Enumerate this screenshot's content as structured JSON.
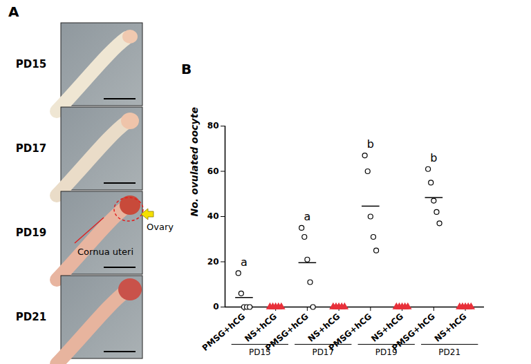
{
  "panel_a": {
    "label": "A",
    "rows": [
      "PD15",
      "PD17",
      "PD19",
      "PD21"
    ],
    "annotations": [
      "Ovary",
      "Cornua uteri"
    ]
  },
  "chart_data": {
    "type": "scatter",
    "panel": "B",
    "ylabel": "No. ovulated oocyte",
    "groups": [
      "PD15",
      "PD17",
      "PD19",
      "PD21"
    ],
    "series": [
      {
        "name": "PMSG+hCG",
        "color": "#000000",
        "marker": "circle",
        "values": [
          [
            15,
            6,
            0,
            0,
            0
          ],
          [
            35,
            31,
            21,
            11,
            0
          ],
          [
            67,
            60,
            40,
            31,
            25
          ],
          [
            61,
            55,
            47,
            42,
            37
          ]
        ],
        "means": [
          4.2,
          19.6,
          44.6,
          48.4
        ],
        "letters": [
          "a",
          "a",
          "b",
          "b"
        ]
      },
      {
        "name": "NS+hCG",
        "color": "#e8303a",
        "marker": "triangle",
        "values": [
          [
            0,
            0,
            0,
            0,
            0
          ],
          [
            0,
            0,
            0,
            0,
            0
          ],
          [
            0,
            0,
            0,
            0,
            0
          ],
          [
            0,
            0,
            0,
            0,
            0
          ]
        ]
      }
    ],
    "ylim": [
      0,
      80
    ],
    "yticks": [
      0,
      20,
      40,
      60,
      80
    ]
  }
}
